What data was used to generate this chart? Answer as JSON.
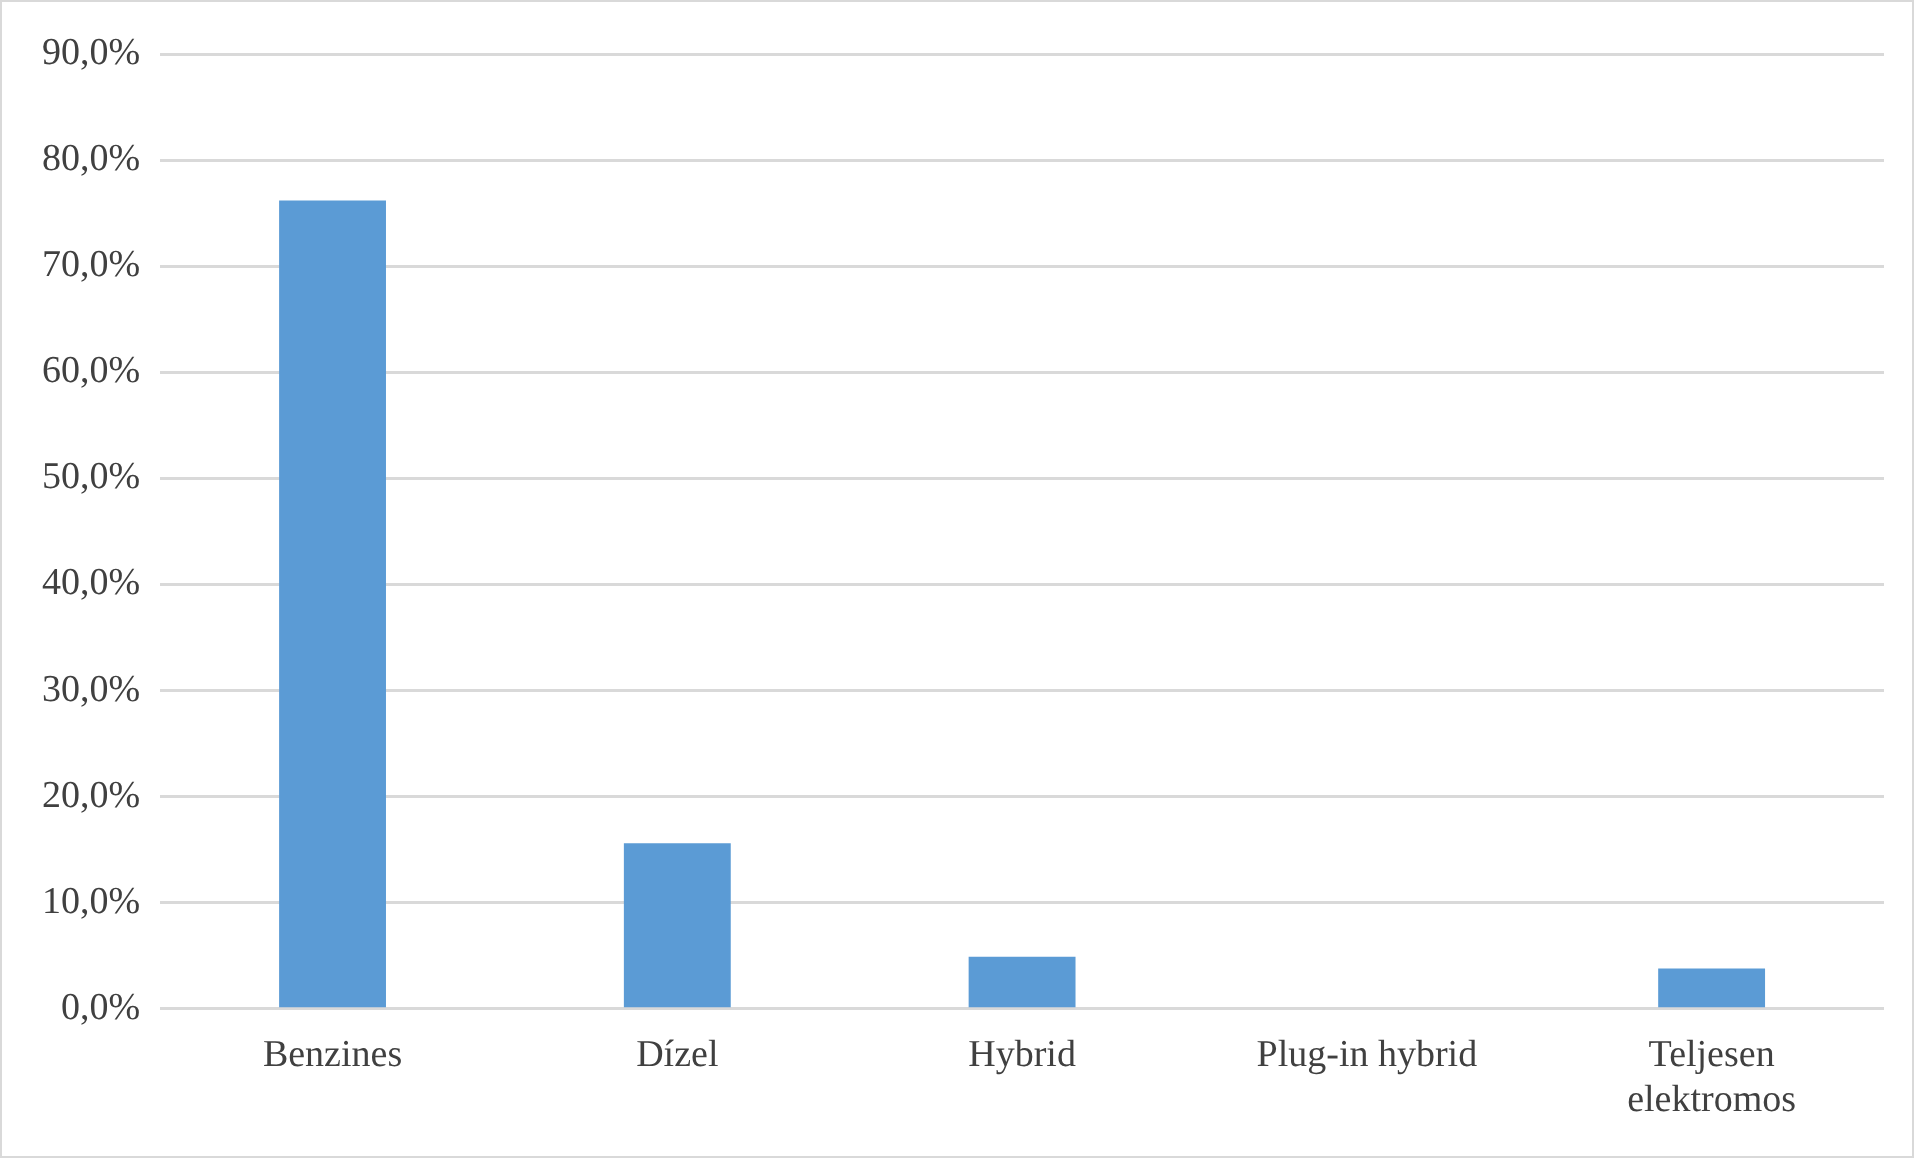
{
  "chart_data": {
    "type": "bar",
    "categories": [
      "Benzines",
      "Dízel",
      "Hybrid",
      "Plug-in hybrid",
      "Teljesen elektromos"
    ],
    "values": [
      76.2,
      15.6,
      4.9,
      0,
      3.8
    ],
    "color": "#5b9bd5",
    "ylim": [
      0,
      90
    ],
    "yticks": [
      {
        "value": 0,
        "label": "0,0%"
      },
      {
        "value": 10,
        "label": "10,0%"
      },
      {
        "value": 20,
        "label": "20,0%"
      },
      {
        "value": 30,
        "label": "30,0%"
      },
      {
        "value": 40,
        "label": "40,0%"
      },
      {
        "value": 50,
        "label": "50,0%"
      },
      {
        "value": 60,
        "label": "60,0%"
      },
      {
        "value": 70,
        "label": "70,0%"
      },
      {
        "value": 80,
        "label": "80,0%"
      },
      {
        "value": 90,
        "label": "90,0%"
      }
    ],
    "grid": "y",
    "legend": false
  }
}
